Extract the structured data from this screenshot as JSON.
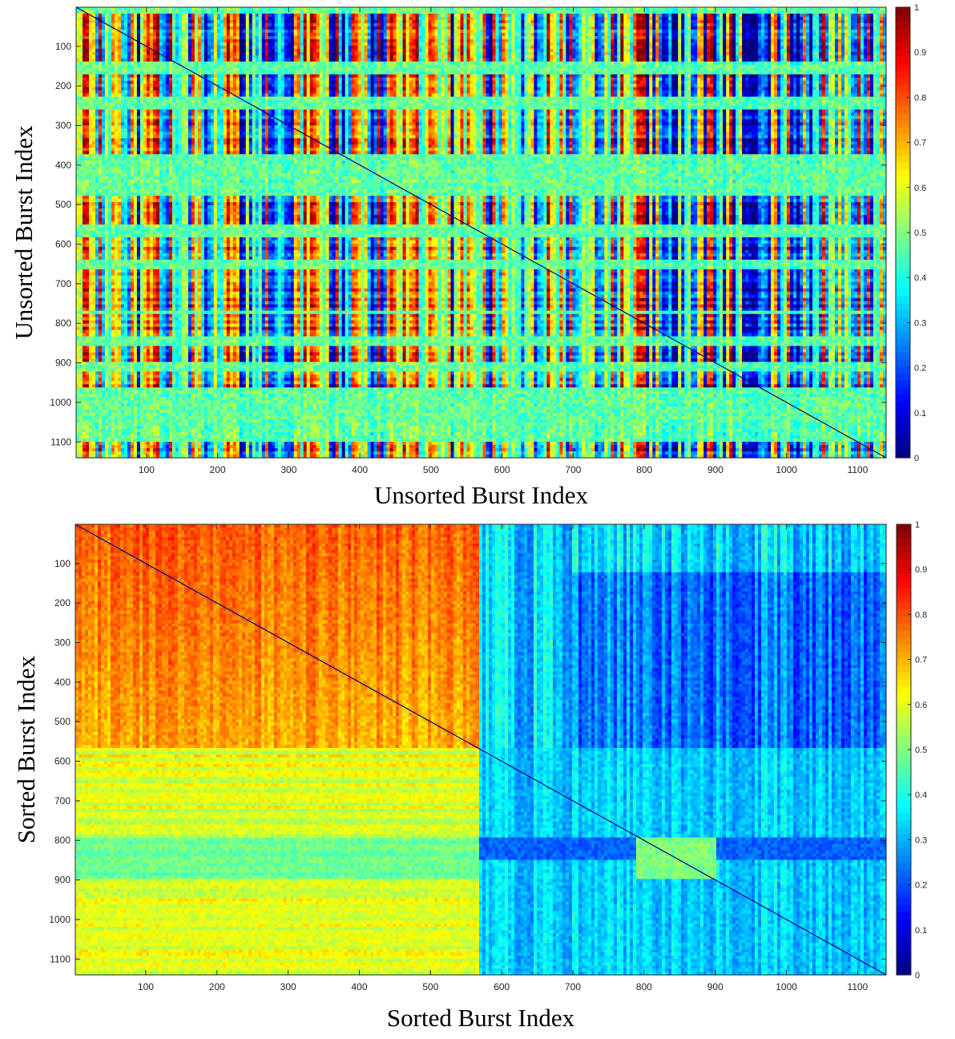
{
  "chart_data": [
    {
      "type": "heatmap",
      "id": "top",
      "title": "",
      "xlabel": "Unsorted Burst Index",
      "ylabel": "Unsorted Burst Index",
      "xlim": [
        1,
        1140
      ],
      "ylim": [
        1,
        1140
      ],
      "xticks": [
        100,
        200,
        300,
        400,
        500,
        600,
        700,
        800,
        900,
        1000,
        1100
      ],
      "yticks": [
        100,
        200,
        300,
        400,
        500,
        600,
        700,
        800,
        900,
        1000,
        1100
      ],
      "colorbar": {
        "min": 0,
        "max": 1,
        "ticks": [
          0,
          0.1,
          0.2,
          0.3,
          0.4,
          0.5,
          0.6,
          0.7,
          0.8,
          0.9,
          1
        ],
        "colormap": "jet"
      },
      "structure": "unsorted",
      "diagonal_value": 0.0
    },
    {
      "type": "heatmap",
      "id": "bottom",
      "title": "",
      "xlabel": "Sorted Burst Index",
      "ylabel": "Sorted Burst Index",
      "xlim": [
        1,
        1140
      ],
      "ylim": [
        1,
        1140
      ],
      "xticks": [
        100,
        200,
        300,
        400,
        500,
        600,
        700,
        800,
        900,
        1000,
        1100
      ],
      "yticks": [
        100,
        200,
        300,
        400,
        500,
        600,
        700,
        800,
        900,
        1000,
        1100
      ],
      "colorbar": {
        "min": 0,
        "max": 1,
        "ticks": [
          0,
          0.1,
          0.2,
          0.3,
          0.4,
          0.5,
          0.6,
          0.7,
          0.8,
          0.9,
          1
        ],
        "colormap": "jet"
      },
      "structure": "sorted",
      "blocks": [
        {
          "x": [
            1,
            570
          ],
          "y": [
            1,
            570
          ],
          "value": 0.78
        },
        {
          "x": [
            570,
            1140
          ],
          "y": [
            1,
            570
          ],
          "value": 0.28
        },
        {
          "x": [
            1,
            570
          ],
          "y": [
            570,
            1140
          ],
          "value": 0.52
        },
        {
          "x": [
            570,
            1140
          ],
          "y": [
            570,
            1140
          ],
          "value": 0.32
        },
        {
          "x": [
            790,
            900
          ],
          "y": [
            790,
            900
          ],
          "value": 0.5
        }
      ],
      "diagonal_value": 0.0
    }
  ]
}
